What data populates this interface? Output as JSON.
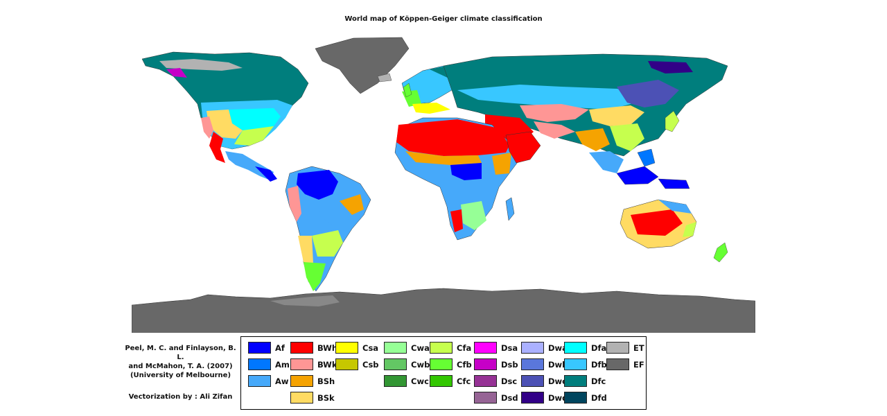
{
  "title": "World map of Köppen-Geiger climate classification",
  "credit": {
    "line1": "Peel, M. C. and Finlayson, B. L.",
    "line2": "and McMahon, T. A. (2007)",
    "line3": "(University of Melbourne)",
    "vectorization": "Vectorization by : Ali Zifan"
  },
  "legend": [
    {
      "code": "Af",
      "color": "#0000fe",
      "col": 0,
      "row": 0
    },
    {
      "code": "Am",
      "color": "#0077ff",
      "col": 0,
      "row": 1
    },
    {
      "code": "Aw",
      "color": "#46a9fa",
      "col": 0,
      "row": 2
    },
    {
      "code": "BWh",
      "color": "#fe0000",
      "col": 1,
      "row": 0
    },
    {
      "code": "BWk",
      "color": "#fe9695",
      "col": 1,
      "row": 1
    },
    {
      "code": "BSh",
      "color": "#f5a301",
      "col": 1,
      "row": 2
    },
    {
      "code": "BSk",
      "color": "#ffdb63",
      "col": 1,
      "row": 3
    },
    {
      "code": "Csa",
      "color": "#ffff00",
      "col": 2,
      "row": 0
    },
    {
      "code": "Csb",
      "color": "#c6c700",
      "col": 2,
      "row": 1
    },
    {
      "code": "Cwa",
      "color": "#96ff96",
      "col": 3,
      "row": 0
    },
    {
      "code": "Cwb",
      "color": "#63c764",
      "col": 3,
      "row": 1
    },
    {
      "code": "Cwc",
      "color": "#329633",
      "col": 3,
      "row": 2
    },
    {
      "code": "Cfa",
      "color": "#c6ff4e",
      "col": 4,
      "row": 0
    },
    {
      "code": "Cfb",
      "color": "#66ff33",
      "col": 4,
      "row": 1
    },
    {
      "code": "Cfc",
      "color": "#33c701",
      "col": 4,
      "row": 2
    },
    {
      "code": "Dsa",
      "color": "#ff00fe",
      "col": 5,
      "row": 0
    },
    {
      "code": "Dsb",
      "color": "#c600c7",
      "col": 5,
      "row": 1
    },
    {
      "code": "Dsc",
      "color": "#963295",
      "col": 5,
      "row": 2
    },
    {
      "code": "Dsd",
      "color": "#966495",
      "col": 5,
      "row": 3
    },
    {
      "code": "Dwa",
      "color": "#abb1ff",
      "col": 6,
      "row": 0
    },
    {
      "code": "Dwb",
      "color": "#5a77db",
      "col": 6,
      "row": 1
    },
    {
      "code": "Dwc",
      "color": "#4c51b5",
      "col": 6,
      "row": 2
    },
    {
      "code": "Dwd",
      "color": "#320087",
      "col": 6,
      "row": 3
    },
    {
      "code": "Dfa",
      "color": "#00ffff",
      "col": 7,
      "row": 0
    },
    {
      "code": "Dfb",
      "color": "#38c7ff",
      "col": 7,
      "row": 1
    },
    {
      "code": "Dfc",
      "color": "#007e7d",
      "col": 7,
      "row": 2
    },
    {
      "code": "Dfd",
      "color": "#00455e",
      "col": 7,
      "row": 3
    },
    {
      "code": "ET",
      "color": "#b2b2b2",
      "col": 8,
      "row": 0
    },
    {
      "code": "EF",
      "color": "#686868",
      "col": 8,
      "row": 1
    }
  ]
}
